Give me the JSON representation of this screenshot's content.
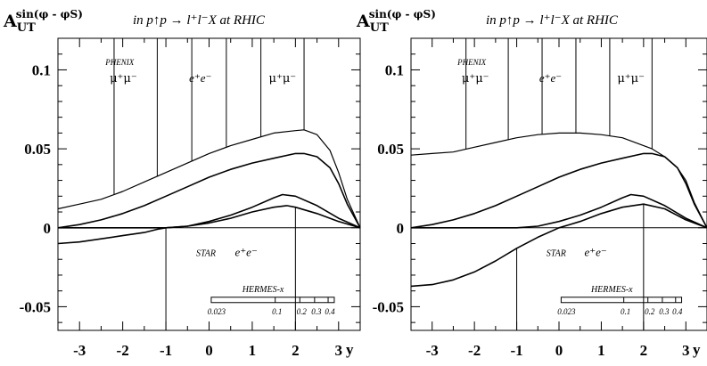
{
  "chart_data": [
    {
      "type": "line",
      "title": "in p↑p → l⁺l⁻X  at  RHIC",
      "ylabel": {
        "main": "A",
        "sub": "UT",
        "sup": "sin(φ - φS)"
      },
      "xlabel": "y",
      "xlim": [
        -3.5,
        3.5
      ],
      "ylim": [
        -0.065,
        0.12
      ],
      "x_ticks": [
        "-3",
        "-2",
        "-1",
        "0",
        "1",
        "2",
        "3"
      ],
      "y_ticks": [
        "0.1",
        "0.05",
        "0",
        "-0.05"
      ],
      "y_tick_values": [
        0.1,
        0.05,
        0,
        -0.05
      ],
      "grid": false,
      "series": [
        {
          "x": [
            -3.5,
            -3,
            -2.5,
            -2,
            -1.5,
            -1,
            -0.5,
            0,
            0.5,
            1,
            1.5,
            2,
            2.2,
            2.5,
            2.8,
            3,
            3.2,
            3.5
          ],
          "y": [
            0.012,
            0.015,
            0.018,
            0.023,
            0.029,
            0.035,
            0.041,
            0.047,
            0.052,
            0.056,
            0.06,
            0.0615,
            0.062,
            0.059,
            0.049,
            0.035,
            0.018,
            0.0
          ]
        },
        {
          "x": [
            -3.5,
            -3,
            -2.5,
            -2,
            -1.5,
            -1,
            -0.5,
            0,
            0.5,
            1,
            1.5,
            2,
            2.2,
            2.5,
            2.8,
            3,
            3.2,
            3.5
          ],
          "y": [
            0.0,
            0.002,
            0.005,
            0.009,
            0.014,
            0.02,
            0.026,
            0.032,
            0.037,
            0.041,
            0.044,
            0.047,
            0.047,
            0.045,
            0.038,
            0.028,
            0.015,
            0.0
          ]
        },
        {
          "x": [
            -3.5,
            -3,
            -2.5,
            -2,
            -1.5,
            -1,
            -0.5,
            0,
            0.5,
            1,
            1.5,
            1.7,
            2,
            2.5,
            3,
            3.5
          ],
          "y": [
            0.0,
            0.0,
            0.0,
            0.0,
            0.0,
            0.0,
            0.001,
            0.004,
            0.008,
            0.013,
            0.019,
            0.021,
            0.02,
            0.014,
            0.006,
            0.0
          ]
        },
        {
          "x": [
            -3.5,
            -3,
            -2.5,
            -2,
            -1.5,
            -1.2,
            -1,
            -0.5,
            0,
            0.5,
            1,
            1.5,
            1.8,
            2,
            2.5,
            3,
            3.5
          ],
          "y": [
            -0.01,
            -0.009,
            -0.007,
            -0.005,
            -0.003,
            -0.001,
            0.0,
            0.001,
            0.003,
            0.006,
            0.01,
            0.013,
            0.014,
            0.013,
            0.009,
            0.004,
            0.0
          ]
        }
      ],
      "rapidity_bins_top": [
        -2.2,
        -1.2,
        -0.4,
        0.4,
        1.2,
        2.2
      ],
      "rapidity_bins_bottom": [
        -1.0,
        2.0
      ],
      "labels": {
        "phenix": "PHENIX",
        "mumu_left": "μ⁺μ⁻",
        "ee_mid": "e⁺e⁻",
        "mumu_right": "μ⁺μ⁻",
        "star": "STAR",
        "ee_star": "e⁺e⁻",
        "hermes": "HERMES-x"
      },
      "hermes_axis": [
        "0.023",
        "0.1",
        "0.2",
        "0.3",
        "0.4"
      ],
      "hermes_axis_values": [
        0.023,
        0.1,
        0.2,
        0.3,
        0.4
      ]
    },
    {
      "type": "line",
      "title": "in p↑p → l⁺l⁻X  at  RHIC",
      "ylabel": {
        "main": "A",
        "sub": "UT",
        "sup": "sin(φ - φS)"
      },
      "xlabel": "y",
      "xlim": [
        -3.5,
        3.5
      ],
      "ylim": [
        -0.065,
        0.12
      ],
      "x_ticks": [
        "-3",
        "-2",
        "-1",
        "0",
        "1",
        "2",
        "3"
      ],
      "y_ticks": [
        "0.1",
        "0.05",
        "0",
        "-0.05"
      ],
      "y_tick_values": [
        0.1,
        0.05,
        0,
        -0.05
      ],
      "grid": false,
      "series": [
        {
          "x": [
            -3.5,
            -3,
            -2.5,
            -2,
            -1.5,
            -1,
            -0.5,
            0,
            0.5,
            1,
            1.5,
            2,
            2.2,
            2.5,
            2.8,
            3,
            3.2,
            3.5
          ],
          "y": [
            0.046,
            0.047,
            0.048,
            0.051,
            0.054,
            0.057,
            0.059,
            0.06,
            0.06,
            0.059,
            0.057,
            0.052,
            0.05,
            0.045,
            0.038,
            0.03,
            0.016,
            0.0
          ]
        },
        {
          "x": [
            -3.5,
            -3,
            -2.5,
            -2,
            -1.5,
            -1,
            -0.5,
            0,
            0.5,
            1,
            1.5,
            2,
            2.2,
            2.5,
            2.8,
            3,
            3.2,
            3.5
          ],
          "y": [
            0.0,
            0.002,
            0.005,
            0.009,
            0.014,
            0.02,
            0.026,
            0.032,
            0.037,
            0.041,
            0.044,
            0.047,
            0.047,
            0.045,
            0.038,
            0.028,
            0.015,
            0.0
          ]
        },
        {
          "x": [
            -3.5,
            -3,
            -2.5,
            -2,
            -1.5,
            -1,
            -0.5,
            0,
            0.5,
            1,
            1.5,
            1.7,
            2,
            2.5,
            3,
            3.5
          ],
          "y": [
            0.0,
            0.0,
            0.0,
            0.0,
            0.0,
            0.0,
            0.001,
            0.004,
            0.008,
            0.013,
            0.019,
            0.021,
            0.02,
            0.014,
            0.006,
            0.0
          ]
        },
        {
          "x": [
            -3.5,
            -3,
            -2.5,
            -2,
            -1.5,
            -1,
            -0.5,
            0,
            0.5,
            1,
            1.5,
            2,
            2.5,
            3,
            3.5
          ],
          "y": [
            -0.037,
            -0.036,
            -0.033,
            -0.028,
            -0.021,
            -0.013,
            -0.006,
            0.0,
            0.004,
            0.009,
            0.013,
            0.015,
            0.012,
            0.005,
            0.0
          ]
        }
      ],
      "rapidity_bins_top": [
        -2.2,
        -1.2,
        -0.4,
        0.4,
        1.2,
        2.2
      ],
      "rapidity_bins_bottom": [
        -1.0,
        2.0
      ],
      "labels": {
        "phenix": "PHENIX",
        "mumu_left": "μ⁺μ⁻",
        "ee_mid": "e⁺e⁻",
        "mumu_right": "μ⁺μ⁻",
        "star": "STAR",
        "ee_star": "e⁺e⁻",
        "hermes": "HERMES-x"
      },
      "hermes_axis": [
        "0.023",
        "0.1",
        "0.2",
        "0.3",
        "0.4"
      ],
      "hermes_axis_values": [
        0.023,
        0.1,
        0.2,
        0.3,
        0.4
      ]
    }
  ]
}
